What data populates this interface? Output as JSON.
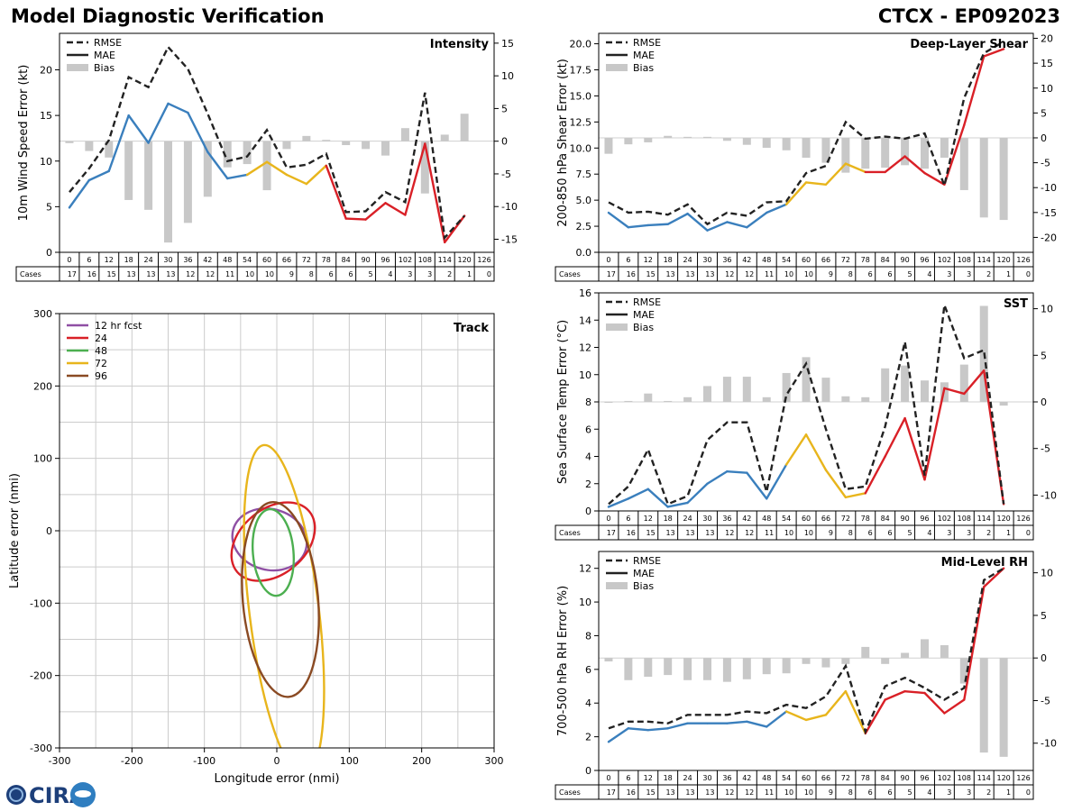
{
  "header": {
    "title": "Model Diagnostic Verification",
    "storm_id": "CTCX - EP092023"
  },
  "logo": {
    "text": "CIRA",
    "icon": "cira-logo-icon"
  },
  "colors": {
    "rmse": "#222222",
    "mae_early": "#3a7fbd",
    "mae_mid": "#e8b51c",
    "mae_late": "#d92027",
    "bias": "#c8c8c8",
    "grid": "#cccccc"
  },
  "legend_labels": {
    "rmse": "RMSE",
    "mae": "MAE",
    "bias": "Bias"
  },
  "hours": [
    "0",
    "6",
    "12",
    "18",
    "24",
    "30",
    "36",
    "42",
    "48",
    "54",
    "60",
    "66",
    "72",
    "78",
    "84",
    "90",
    "96",
    "102",
    "108",
    "114",
    "120",
    "126"
  ],
  "cases_label": "Cases",
  "cases": [
    "17",
    "16",
    "15",
    "13",
    "13",
    "13",
    "12",
    "12",
    "11",
    "10",
    "10",
    "9",
    "8",
    "6",
    "6",
    "5",
    "4",
    "3",
    "3",
    "2",
    "1",
    "0"
  ],
  "chart_data": [
    {
      "id": "intensity",
      "type": "line",
      "title": "Intensity",
      "ylabel": "10m Wind Speed Error (kt)",
      "ylim": [
        0,
        24
      ],
      "yticks": [
        0,
        5,
        10,
        15,
        20
      ],
      "y2lim": [
        -17,
        16.5
      ],
      "y2ticks": [
        -15,
        -10,
        -5,
        0,
        5,
        10,
        15
      ],
      "rmse": [
        6.6,
        9.2,
        12.3,
        19.2,
        18.1,
        22.5,
        20.1,
        15.2,
        10.0,
        10.5,
        13.4,
        9.3,
        9.6,
        10.8,
        4.4,
        4.5,
        6.6,
        5.5,
        17.5,
        1.6,
        4.0
      ],
      "mae": [
        4.9,
        7.9,
        8.9,
        15.0,
        12.0,
        16.3,
        15.3,
        11.0,
        8.1,
        8.5,
        9.9,
        8.5,
        7.5,
        9.5,
        3.7,
        3.6,
        5.4,
        4.1,
        11.9,
        1.1,
        4.0
      ],
      "bias": [
        -0.3,
        -1.5,
        -2.5,
        -9.0,
        -10.5,
        -15.5,
        -12.5,
        -8.5,
        -4.0,
        -3.5,
        -7.5,
        -1.2,
        0.8,
        0.2,
        -0.6,
        -1.2,
        -2.2,
        2.0,
        -8.0,
        1.0,
        4.2
      ]
    },
    {
      "id": "shear",
      "type": "line",
      "title": "Deep-Layer Shear",
      "ylabel": "200-850 hPa Shear Error (kt)",
      "ylim": [
        0,
        21
      ],
      "yticks": [
        0.0,
        2.5,
        5.0,
        7.5,
        10.0,
        12.5,
        15.0,
        17.5,
        20.0
      ],
      "y2lim": [
        -23,
        21
      ],
      "y2ticks": [
        -20,
        -15,
        -10,
        -5,
        0,
        5,
        10,
        15,
        20
      ],
      "rmse": [
        4.8,
        3.8,
        3.9,
        3.6,
        4.6,
        2.7,
        3.8,
        3.5,
        4.8,
        4.9,
        7.6,
        8.3,
        12.5,
        10.9,
        11.1,
        10.9,
        11.4,
        6.4,
        14.8,
        19.1,
        20.2
      ],
      "mae": [
        3.8,
        2.4,
        2.6,
        2.7,
        3.7,
        2.1,
        2.9,
        2.4,
        3.8,
        4.6,
        6.7,
        6.5,
        8.5,
        7.7,
        7.7,
        9.2,
        7.6,
        6.5,
        12.2,
        18.8,
        19.5
      ],
      "bias": [
        -3.2,
        -1.3,
        -0.9,
        0.4,
        0.2,
        0.2,
        -0.6,
        -1.4,
        -2.0,
        -2.5,
        -4.0,
        -5.0,
        -7.0,
        -6.2,
        -6.0,
        -5.5,
        -6.2,
        -4.0,
        -10.5,
        -16.0,
        -16.5
      ]
    },
    {
      "id": "sst",
      "type": "line",
      "title": "SST",
      "ylabel": "Sea Surface Temp Error (°C)",
      "ylim": [
        0,
        16
      ],
      "yticks": [
        0,
        2,
        4,
        6,
        8,
        10,
        12,
        14,
        16
      ],
      "y2lim": [
        -11.7,
        11.7
      ],
      "y2ticks": [
        -10,
        -5,
        0,
        5,
        10
      ],
      "rmse": [
        0.5,
        1.8,
        4.5,
        0.5,
        1.1,
        5.2,
        6.5,
        6.5,
        1.4,
        8.5,
        10.8,
        6.0,
        1.6,
        1.8,
        6.2,
        12.4,
        2.6,
        15.1,
        11.2,
        11.8,
        0.5
      ],
      "mae": [
        0.3,
        0.9,
        1.6,
        0.3,
        0.6,
        2.0,
        2.9,
        2.8,
        0.9,
        3.4,
        5.6,
        3.0,
        1.0,
        1.3,
        4.0,
        6.8,
        2.3,
        9.0,
        8.6,
        10.3,
        0.5
      ],
      "bias": [
        0.0,
        0.1,
        0.9,
        0.1,
        0.5,
        1.7,
        2.7,
        2.7,
        0.5,
        3.1,
        4.8,
        2.6,
        0.6,
        0.5,
        3.6,
        3.9,
        2.3,
        2.1,
        4.0,
        10.3,
        -0.4
      ]
    },
    {
      "id": "rh",
      "type": "line",
      "title": "Mid-Level RH",
      "ylabel": "700-500 hPa RH Error (%)",
      "ylim": [
        0,
        13
      ],
      "yticks": [
        0,
        2,
        4,
        6,
        8,
        10,
        12
      ],
      "y2lim": [
        -13.2,
        12.5
      ],
      "y2ticks": [
        -10,
        -5,
        0,
        5,
        10
      ],
      "rmse": [
        2.5,
        2.9,
        2.9,
        2.8,
        3.3,
        3.3,
        3.3,
        3.5,
        3.4,
        3.9,
        3.7,
        4.4,
        6.2,
        2.3,
        5.0,
        5.5,
        4.9,
        4.2,
        4.9,
        11.3,
        12.0
      ],
      "mae": [
        1.7,
        2.5,
        2.4,
        2.5,
        2.8,
        2.8,
        2.8,
        2.9,
        2.6,
        3.5,
        3.0,
        3.3,
        4.7,
        2.2,
        4.2,
        4.7,
        4.6,
        3.4,
        4.2,
        10.9,
        12.0
      ],
      "bias": [
        -0.4,
        -2.6,
        -2.2,
        -2.0,
        -2.6,
        -2.6,
        -2.8,
        -2.5,
        -1.9,
        -1.8,
        -0.7,
        -1.1,
        -0.7,
        1.3,
        -0.7,
        0.6,
        2.2,
        1.5,
        -3.0,
        -11.1,
        -11.6
      ]
    },
    {
      "id": "track",
      "type": "scatter",
      "title": "Track",
      "xlabel": "Longitude error (nmi)",
      "ylabel": "Latitude error (nmi)",
      "xlim": [
        -300,
        300
      ],
      "ylim": [
        -300,
        300
      ],
      "ticks": [
        -300,
        -200,
        -100,
        0,
        100,
        200,
        300
      ],
      "ellipses": [
        {
          "name": "12 hr fcst",
          "color": "#8f4fa4",
          "cx": -10,
          "cy": -12,
          "rx": 52,
          "ry": 42,
          "rot": 15
        },
        {
          "name": "24",
          "color": "#d92027",
          "cx": -5,
          "cy": -15,
          "rx": 65,
          "ry": 45,
          "rot": -40
        },
        {
          "name": "48",
          "color": "#4caf50",
          "cx": -5,
          "cy": -30,
          "rx": 28,
          "ry": 60,
          "rot": -5
        },
        {
          "name": "72",
          "color": "#e8b51c",
          "cx": 10,
          "cy": -110,
          "rx": 48,
          "ry": 230,
          "rot": -7
        },
        {
          "name": "96",
          "color": "#8a4a23",
          "cx": 5,
          "cy": -95,
          "rx": 52,
          "ry": 135,
          "rot": -5
        }
      ]
    }
  ]
}
